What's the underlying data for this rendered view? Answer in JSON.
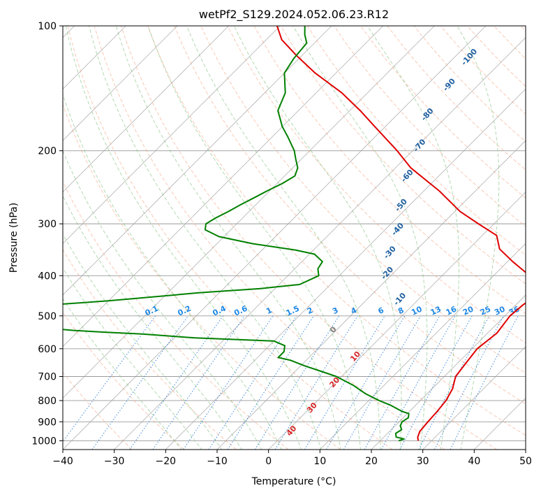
{
  "chart_data": {
    "type": "line",
    "title": "wetPf2_S129.2024.052.06.23.R12",
    "xlabel": "Temperature (°C)",
    "ylabel": "Pressure (hPa)",
    "xlim": [
      -40,
      50
    ],
    "ylim": [
      1050,
      100
    ],
    "y_scale": "log",
    "x_ticks": [
      -40,
      -30,
      -20,
      -10,
      0,
      10,
      20,
      30,
      40,
      50
    ],
    "y_ticks": [
      1000,
      900,
      800,
      700,
      600,
      500,
      400,
      300,
      200,
      100
    ],
    "grid": true,
    "skew": true,
    "colors": {
      "temperature": "#e00000",
      "dewpoint": "#008000",
      "dry_adiabat": "#f4a582",
      "moist_adiabat": "#7fbf7b",
      "mixing_ratio": "#1f77d4",
      "isotherm": "#555555",
      "dry_label": "#1f5f9f",
      "mixing_label": "#1e88e5",
      "warm_label": "#d62728",
      "zero_label": "#808080"
    },
    "series": [
      {
        "key": "temperature",
        "points": [
          [
            27.4,
            1000
          ],
          [
            26.6,
            980
          ],
          [
            25.9,
            950
          ],
          [
            25.6,
            900
          ],
          [
            25.4,
            850
          ],
          [
            25.0,
            800
          ],
          [
            24.0,
            750
          ],
          [
            22.2,
            700
          ],
          [
            21.6,
            650
          ],
          [
            21.0,
            600
          ],
          [
            21.8,
            550
          ],
          [
            21.0,
            500
          ],
          [
            21.4,
            470
          ],
          [
            22.2,
            450
          ],
          [
            20.0,
            420
          ],
          [
            17.0,
            400
          ],
          [
            11.0,
            370
          ],
          [
            6.0,
            345
          ],
          [
            2.8,
            320
          ],
          [
            -3.0,
            300
          ],
          [
            -9.0,
            280
          ],
          [
            -17.0,
            250
          ],
          [
            -27.0,
            220
          ],
          [
            -33.0,
            200
          ],
          [
            -42.0,
            175
          ],
          [
            -48.0,
            160
          ],
          [
            -55.0,
            145
          ],
          [
            -64.0,
            130
          ],
          [
            -71.0,
            118
          ],
          [
            -77.0,
            108
          ],
          [
            -80.6,
            100
          ]
        ]
      },
      {
        "key": "dewpoint",
        "points": [
          [
            23.6,
            1000
          ],
          [
            24.3,
            990
          ],
          [
            22.4,
            980
          ],
          [
            21.6,
            960
          ],
          [
            22.0,
            940
          ],
          [
            21.0,
            920
          ],
          [
            20.6,
            900
          ],
          [
            21.0,
            880
          ],
          [
            20.3,
            860
          ],
          [
            18.6,
            850
          ],
          [
            15.0,
            820
          ],
          [
            12.0,
            800
          ],
          [
            8.0,
            770
          ],
          [
            4.0,
            735
          ],
          [
            -1.0,
            700
          ],
          [
            -5.0,
            680
          ],
          [
            -9.2,
            660
          ],
          [
            -13.0,
            640
          ],
          [
            -16.0,
            630
          ],
          [
            -16.0,
            610
          ],
          [
            -17.0,
            590
          ],
          [
            -20.0,
            575
          ],
          [
            -36.0,
            565
          ],
          [
            -47.0,
            553
          ],
          [
            -54.0,
            548
          ],
          [
            -61.0,
            542
          ],
          [
            -71.0,
            530
          ],
          [
            -78.0,
            515
          ],
          [
            -86.0,
            505
          ],
          [
            -91.0,
            498
          ],
          [
            -86.0,
            486
          ],
          [
            -75.0,
            475
          ],
          [
            -60.0,
            460
          ],
          [
            -44.0,
            440
          ],
          [
            -33.0,
            430
          ],
          [
            -26.0,
            420
          ],
          [
            -24.0,
            400
          ],
          [
            -25.5,
            385
          ],
          [
            -26.0,
            370
          ],
          [
            -29.0,
            355
          ],
          [
            -33.5,
            347
          ],
          [
            -43.0,
            335
          ],
          [
            -51.0,
            322
          ],
          [
            -55.0,
            310
          ],
          [
            -56.0,
            300
          ],
          [
            -55.2,
            290
          ],
          [
            -54.0,
            280
          ],
          [
            -53.0,
            270
          ],
          [
            -51.5,
            258
          ],
          [
            -50.5,
            250
          ],
          [
            -49.0,
            240
          ],
          [
            -48.0,
            230
          ],
          [
            -49.0,
            220
          ],
          [
            -51.0,
            210
          ],
          [
            -53.0,
            200
          ],
          [
            -57.0,
            185
          ],
          [
            -60.0,
            175
          ],
          [
            -64.0,
            160
          ],
          [
            -66.0,
            145
          ],
          [
            -70.0,
            130
          ],
          [
            -71.0,
            120
          ],
          [
            -71.5,
            110
          ],
          [
            -73.5,
            105
          ],
          [
            -75.2,
            100
          ]
        ]
      }
    ],
    "dry_adiabat_labels": [
      "-100",
      "-90",
      "-80",
      "-70",
      "-60",
      "-50",
      "-40",
      "-30",
      "-20",
      "-10",
      "0",
      "10",
      "20",
      "30",
      "40"
    ],
    "mixing_ratio_labels": [
      "0.1",
      "0.2",
      "0.4",
      "0.6",
      "1",
      "1.5",
      "2",
      "3",
      "4",
      "6",
      "8",
      "10",
      "13",
      "16",
      "20",
      "25",
      "30",
      "36"
    ]
  }
}
